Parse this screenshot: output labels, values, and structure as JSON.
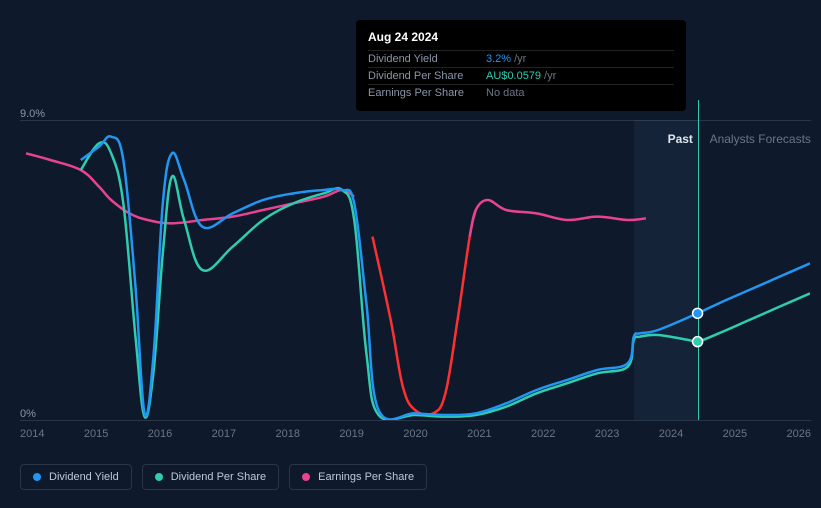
{
  "chart": {
    "type": "line",
    "background_color": "#0e1a2b",
    "grid_color": "#2a3548",
    "xlim": [
      2013.5,
      2026.5
    ],
    "ylim": [
      0,
      9
    ],
    "y_ticks": [
      0,
      9
    ],
    "y_tick_labels": [
      "0%",
      "9.0%"
    ],
    "x_ticks": [
      2014,
      2015,
      2016,
      2017,
      2018,
      2019,
      2020,
      2021,
      2022,
      2023,
      2024,
      2025,
      2026
    ],
    "x_tick_labels": [
      "2014",
      "2015",
      "2016",
      "2017",
      "2018",
      "2019",
      "2020",
      "2021",
      "2022",
      "2023",
      "2024",
      "2025",
      "2026"
    ],
    "label_fontsize": 11,
    "label_color": "#6b7585",
    "forecast_band": {
      "start_x": 2023.6,
      "end_x": 2024.65,
      "color": "rgba(100,150,200,0.08)"
    },
    "hover_x": 2024.65,
    "past_label": "Past",
    "forecast_label": "Analysts Forecasts",
    "line_width": 2.5,
    "series": {
      "dividend_yield": {
        "color": "#2196f3",
        "points": [
          [
            2014.5,
            7.8
          ],
          [
            2014.8,
            8.2
          ],
          [
            2015.0,
            8.5
          ],
          [
            2015.2,
            7.8
          ],
          [
            2015.4,
            4.0
          ],
          [
            2015.55,
            0.2
          ],
          [
            2015.7,
            2.0
          ],
          [
            2015.85,
            6.5
          ],
          [
            2016.0,
            8.0
          ],
          [
            2016.2,
            7.2
          ],
          [
            2016.5,
            5.8
          ],
          [
            2017.0,
            6.2
          ],
          [
            2017.5,
            6.6
          ],
          [
            2018.0,
            6.8
          ],
          [
            2018.5,
            6.9
          ],
          [
            2018.8,
            6.9
          ],
          [
            2019.0,
            6.5
          ],
          [
            2019.2,
            3.5
          ],
          [
            2019.4,
            0.3
          ],
          [
            2020.0,
            0.2
          ],
          [
            2020.5,
            0.15
          ],
          [
            2021.0,
            0.2
          ],
          [
            2021.5,
            0.5
          ],
          [
            2022.0,
            0.9
          ],
          [
            2022.5,
            1.2
          ],
          [
            2023.0,
            1.5
          ],
          [
            2023.5,
            1.7
          ],
          [
            2023.6,
            2.5
          ],
          [
            2023.7,
            2.6
          ],
          [
            2024.0,
            2.7
          ],
          [
            2024.65,
            3.2
          ],
          [
            2025.0,
            3.5
          ],
          [
            2025.5,
            3.9
          ],
          [
            2026.0,
            4.3
          ],
          [
            2026.5,
            4.7
          ]
        ]
      },
      "dividend_per_share": {
        "color": "#2eccb0",
        "points": [
          [
            2014.5,
            7.5
          ],
          [
            2014.8,
            8.3
          ],
          [
            2015.0,
            8.0
          ],
          [
            2015.2,
            6.5
          ],
          [
            2015.4,
            2.5
          ],
          [
            2015.55,
            0.1
          ],
          [
            2015.7,
            1.5
          ],
          [
            2015.85,
            5.0
          ],
          [
            2016.0,
            7.3
          ],
          [
            2016.2,
            6.0
          ],
          [
            2016.5,
            4.5
          ],
          [
            2017.0,
            5.2
          ],
          [
            2017.5,
            6.0
          ],
          [
            2018.0,
            6.5
          ],
          [
            2018.5,
            6.8
          ],
          [
            2018.8,
            6.9
          ],
          [
            2019.0,
            6.0
          ],
          [
            2019.2,
            2.0
          ],
          [
            2019.4,
            0.15
          ],
          [
            2020.0,
            0.15
          ],
          [
            2020.5,
            0.1
          ],
          [
            2021.0,
            0.15
          ],
          [
            2021.5,
            0.4
          ],
          [
            2022.0,
            0.8
          ],
          [
            2022.5,
            1.1
          ],
          [
            2023.0,
            1.4
          ],
          [
            2023.5,
            1.6
          ],
          [
            2023.6,
            2.4
          ],
          [
            2023.7,
            2.5
          ],
          [
            2024.0,
            2.55
          ],
          [
            2024.5,
            2.4
          ],
          [
            2024.65,
            2.35
          ],
          [
            2025.0,
            2.6
          ],
          [
            2025.5,
            3.0
          ],
          [
            2026.0,
            3.4
          ],
          [
            2026.5,
            3.8
          ]
        ]
      },
      "earnings_per_share": {
        "color_past": "#e84393",
        "color_negative": "#ff3030",
        "points": [
          [
            2013.6,
            8.0
          ],
          [
            2014.0,
            7.8
          ],
          [
            2014.5,
            7.5
          ],
          [
            2014.8,
            7.0
          ],
          [
            2015.0,
            6.6
          ],
          [
            2015.3,
            6.2
          ],
          [
            2015.6,
            6.0
          ],
          [
            2016.0,
            5.9
          ],
          [
            2016.5,
            6.0
          ],
          [
            2017.0,
            6.1
          ],
          [
            2017.5,
            6.3
          ],
          [
            2018.0,
            6.5
          ],
          [
            2018.5,
            6.7
          ],
          [
            2018.8,
            6.9
          ],
          [
            2019.0,
            6.7
          ],
          [
            2019.3,
            5.5
          ],
          [
            2019.6,
            3.0
          ],
          [
            2019.8,
            1.0
          ],
          [
            2020.0,
            0.3
          ],
          [
            2020.3,
            0.2
          ],
          [
            2020.5,
            0.8
          ],
          [
            2020.7,
            3.0
          ],
          [
            2020.9,
            5.5
          ],
          [
            2021.0,
            6.3
          ],
          [
            2021.2,
            6.6
          ],
          [
            2021.5,
            6.3
          ],
          [
            2022.0,
            6.2
          ],
          [
            2022.5,
            6.0
          ],
          [
            2023.0,
            6.1
          ],
          [
            2023.5,
            6.0
          ],
          [
            2023.8,
            6.05
          ]
        ],
        "negative_range": [
          2019.1,
          2020.95
        ]
      }
    },
    "markers": [
      {
        "x": 2024.65,
        "y": 3.2,
        "color": "#2196f3",
        "size": 5
      },
      {
        "x": 2024.65,
        "y": 2.35,
        "color": "#2eccb0",
        "size": 5
      }
    ]
  },
  "tooltip": {
    "date": "Aug 24 2024",
    "rows": [
      {
        "label": "Dividend Yield",
        "value": "3.2%",
        "suffix": "/yr",
        "color": "#2196f3"
      },
      {
        "label": "Dividend Per Share",
        "value": "AU$0.0579",
        "suffix": "/yr",
        "color": "#2eccb0"
      },
      {
        "label": "Earnings Per Share",
        "value": "No data",
        "suffix": "",
        "color": "#6b7585"
      }
    ]
  },
  "legend": {
    "items": [
      {
        "label": "Dividend Yield",
        "color": "#2196f3"
      },
      {
        "label": "Dividend Per Share",
        "color": "#2eccb0"
      },
      {
        "label": "Earnings Per Share",
        "color": "#e84393"
      }
    ]
  }
}
